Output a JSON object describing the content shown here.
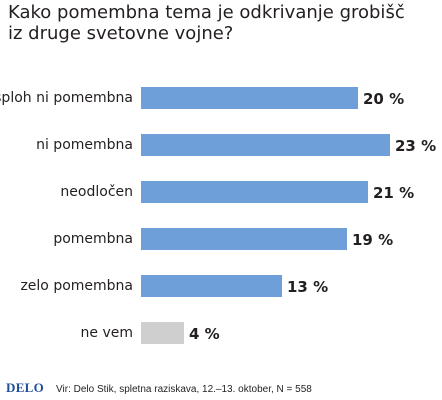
{
  "title_lines": [
    "Kako pomembna tema je odkrivanje grobišč",
    "iz druge svetovne vojne?"
  ],
  "footer": {
    "brand": "DELO",
    "source": "Vir: Delo Stik, spletna raziskava, 12.–13. oktober, N = 558"
  },
  "chart_data": {
    "type": "bar",
    "orientation": "horizontal",
    "title": "Kako pomembna tema je odkrivanje grobišč iz druge svetovne vojne?",
    "categories": [
      "sploh ni pomembna",
      "ni pomembna",
      "neodločen",
      "pomembna",
      "zelo pomembna",
      "ne vem"
    ],
    "values": [
      20,
      23,
      21,
      19,
      13,
      4
    ],
    "value_labels": [
      "20 %",
      "23 %",
      "21 %",
      "19 %",
      "13 %",
      "4 %"
    ],
    "unit": "%",
    "xlim": [
      0,
      23
    ],
    "grid": false,
    "axis_visible": false,
    "colors": [
      "#6f9fd8",
      "#6f9fd8",
      "#6f9fd8",
      "#6f9fd8",
      "#6f9fd8",
      "#cfcfcf"
    ]
  }
}
